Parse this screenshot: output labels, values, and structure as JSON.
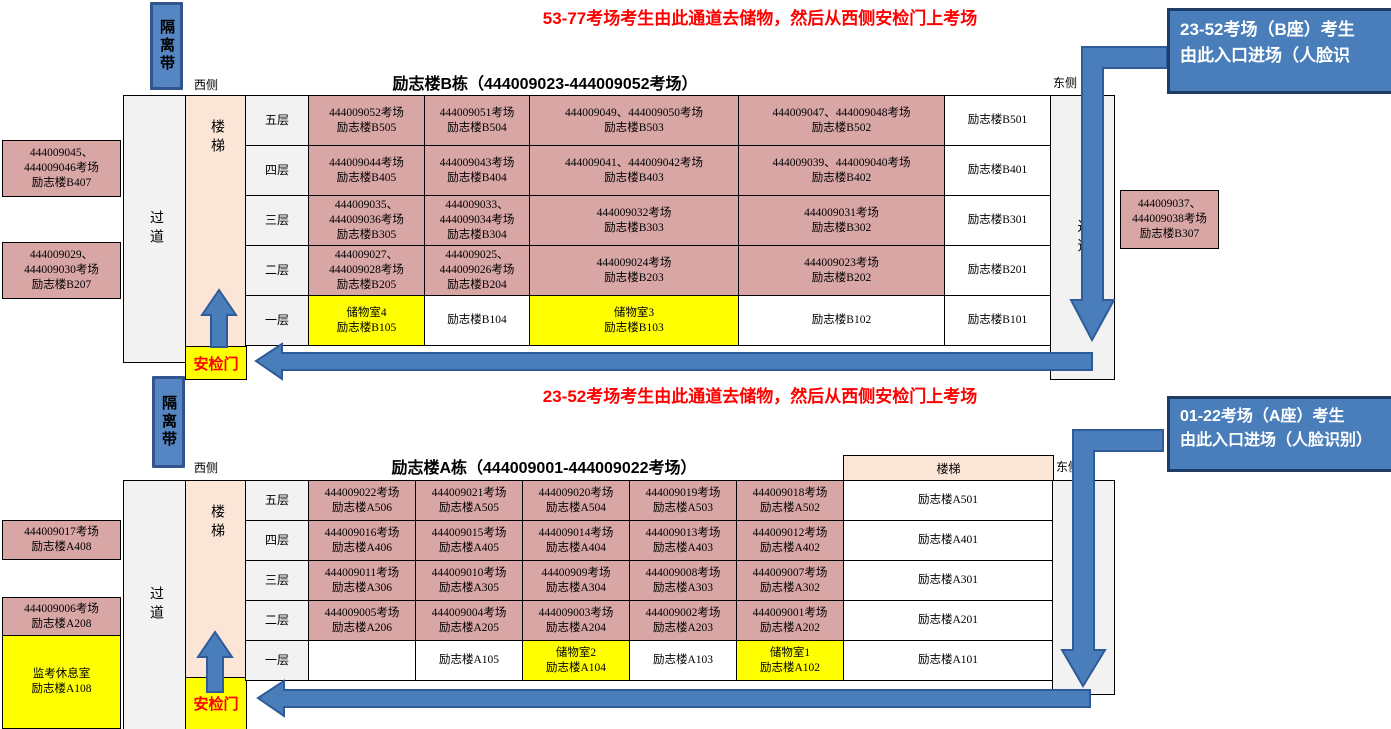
{
  "instructions": {
    "top": "53-77考场考生由此通道去储物，然后从西侧安检门上考场",
    "middle": "23-52考场考生由此通道去储物，然后从西侧安检门上考场"
  },
  "labels": {
    "isolation": "隔离带",
    "west": "西侧",
    "east": "东侧",
    "corridor": "过道",
    "stairs": "楼梯",
    "gate": "安检门"
  },
  "callouts": {
    "b": {
      "lines": [
        "23-52考场（B座）考生",
        "由此入口进场（人脸识"
      ]
    },
    "a": {
      "lines": [
        "01-22考场（A座）考生",
        "由此入口进场（人脸识别）"
      ]
    }
  },
  "colors": {
    "exam_room": "#d9a6a6",
    "storage": "#ffff00",
    "corridor": "#f2f2f2",
    "stairs": "#fbe5d6",
    "arrow_blue": "#4a7ebb",
    "instruction_red": "#ff0000"
  },
  "building_b": {
    "title": "励志楼B栋（444009023-444009052考场）",
    "left_rooms": [
      {
        "lines": [
          "444009045、",
          "444009046考场",
          "励志楼B407"
        ]
      },
      {
        "lines": [
          "444009029、",
          "444009030考场",
          "励志楼B207"
        ]
      }
    ],
    "right_room": {
      "lines": [
        "444009037、",
        "444009038考场",
        "励志楼B307"
      ]
    },
    "floors": [
      {
        "label": "五层",
        "cells": [
          {
            "lines": [
              "444009052考场",
              "励志楼B505"
            ],
            "type": "exam"
          },
          {
            "lines": [
              "444009051考场",
              "励志楼B504"
            ],
            "type": "exam"
          },
          {
            "lines": [
              "444009049、444009050考场",
              "励志楼B503"
            ],
            "type": "exam"
          },
          {
            "lines": [
              "444009047、444009048考场",
              "励志楼B502"
            ],
            "type": "exam"
          },
          {
            "lines": [
              "励志楼B501"
            ],
            "type": "plain"
          }
        ]
      },
      {
        "label": "四层",
        "cells": [
          {
            "lines": [
              "444009044考场",
              "励志楼B405"
            ],
            "type": "exam"
          },
          {
            "lines": [
              "444009043考场",
              "励志楼B404"
            ],
            "type": "exam"
          },
          {
            "lines": [
              "444009041、444009042考场",
              "励志楼B403"
            ],
            "type": "exam"
          },
          {
            "lines": [
              "444009039、444009040考场",
              "励志楼B402"
            ],
            "type": "exam"
          },
          {
            "lines": [
              "励志楼B401"
            ],
            "type": "plain"
          }
        ]
      },
      {
        "label": "三层",
        "cells": [
          {
            "lines": [
              "444009035、",
              "444009036考场",
              "励志楼B305"
            ],
            "type": "exam"
          },
          {
            "lines": [
              "444009033、",
              "444009034考场",
              "励志楼B304"
            ],
            "type": "exam"
          },
          {
            "lines": [
              "444009032考场",
              "励志楼B303"
            ],
            "type": "exam"
          },
          {
            "lines": [
              "444009031考场",
              "励志楼B302"
            ],
            "type": "exam"
          },
          {
            "lines": [
              "励志楼B301"
            ],
            "type": "plain"
          }
        ]
      },
      {
        "label": "二层",
        "cells": [
          {
            "lines": [
              "444009027、",
              "444009028考场",
              "励志楼B205"
            ],
            "type": "exam"
          },
          {
            "lines": [
              "444009025、",
              "444009026考场",
              "励志楼B204"
            ],
            "type": "exam"
          },
          {
            "lines": [
              "444009024考场",
              "励志楼B203"
            ],
            "type": "exam"
          },
          {
            "lines": [
              "444009023考场",
              "励志楼B202"
            ],
            "type": "exam"
          },
          {
            "lines": [
              "励志楼B201"
            ],
            "type": "plain"
          }
        ]
      },
      {
        "label": "一层",
        "cells": [
          {
            "lines": [
              "储物室4",
              "励志楼B105"
            ],
            "type": "storage"
          },
          {
            "lines": [
              "励志楼B104"
            ],
            "type": "plain"
          },
          {
            "lines": [
              "储物室3",
              "励志楼B103"
            ],
            "type": "storage"
          },
          {
            "lines": [
              "励志楼B102"
            ],
            "type": "plain"
          },
          {
            "lines": [
              "励志楼B101"
            ],
            "type": "plain"
          }
        ]
      }
    ]
  },
  "building_a": {
    "title": "励志楼A栋（444009001-444009022考场）",
    "left_rooms": [
      {
        "lines": [
          "444009017考场",
          "励志楼A408"
        ]
      },
      {
        "lines": [
          "444009006考场",
          "励志楼A208"
        ]
      },
      {
        "lines": [
          "监考休息室",
          "励志楼A108"
        ]
      }
    ],
    "floors": [
      {
        "label": "五层",
        "cells": [
          {
            "lines": [
              "444009022考场",
              "励志楼A506"
            ],
            "type": "exam"
          },
          {
            "lines": [
              "444009021考场",
              "励志楼A505"
            ],
            "type": "exam"
          },
          {
            "lines": [
              "444009020考场",
              "励志楼A504"
            ],
            "type": "exam"
          },
          {
            "lines": [
              "444009019考场",
              "励志楼A503"
            ],
            "type": "exam"
          },
          {
            "lines": [
              "444009018考场",
              "励志楼A502"
            ],
            "type": "exam"
          },
          {
            "lines": [
              "励志楼A501"
            ],
            "type": "plain"
          }
        ]
      },
      {
        "label": "四层",
        "cells": [
          {
            "lines": [
              "444009016考场",
              "励志楼A406"
            ],
            "type": "exam"
          },
          {
            "lines": [
              "444009015考场",
              "励志楼A405"
            ],
            "type": "exam"
          },
          {
            "lines": [
              "444009014考场",
              "励志楼A404"
            ],
            "type": "exam"
          },
          {
            "lines": [
              "444009013考场",
              "励志楼A403"
            ],
            "type": "exam"
          },
          {
            "lines": [
              "444009012考场",
              "励志楼A402"
            ],
            "type": "exam"
          },
          {
            "lines": [
              "励志楼A401"
            ],
            "type": "plain"
          }
        ]
      },
      {
        "label": "三层",
        "cells": [
          {
            "lines": [
              "444009011考场",
              "励志楼A306"
            ],
            "type": "exam"
          },
          {
            "lines": [
              "444009010考场",
              "励志楼A305"
            ],
            "type": "exam"
          },
          {
            "lines": [
              "44400909考场",
              "励志楼A304"
            ],
            "type": "exam"
          },
          {
            "lines": [
              "444009008考场",
              "励志楼A303"
            ],
            "type": "exam"
          },
          {
            "lines": [
              "444009007考场",
              "励志楼A302"
            ],
            "type": "exam"
          },
          {
            "lines": [
              "励志楼A301"
            ],
            "type": "plain"
          }
        ]
      },
      {
        "label": "二层",
        "cells": [
          {
            "lines": [
              "444009005考场",
              "励志楼A206"
            ],
            "type": "exam"
          },
          {
            "lines": [
              "444009004考场",
              "励志楼A205"
            ],
            "type": "exam"
          },
          {
            "lines": [
              "444009003考场",
              "励志楼A204"
            ],
            "type": "exam"
          },
          {
            "lines": [
              "444009002考场",
              "励志楼A203"
            ],
            "type": "exam"
          },
          {
            "lines": [
              "444009001考场",
              "励志楼A202"
            ],
            "type": "exam"
          },
          {
            "lines": [
              "励志楼A201"
            ],
            "type": "plain"
          }
        ]
      },
      {
        "label": "一层",
        "cells": [
          {
            "lines": [],
            "type": "plain"
          },
          {
            "lines": [
              "励志楼A105"
            ],
            "type": "plain"
          },
          {
            "lines": [
              "储物室2",
              "励志楼A104"
            ],
            "type": "storage"
          },
          {
            "lines": [
              "励志楼A103"
            ],
            "type": "plain"
          },
          {
            "lines": [
              "储物室1",
              "励志楼A102"
            ],
            "type": "storage"
          },
          {
            "lines": [
              "励志楼A101"
            ],
            "type": "plain"
          }
        ]
      }
    ]
  }
}
